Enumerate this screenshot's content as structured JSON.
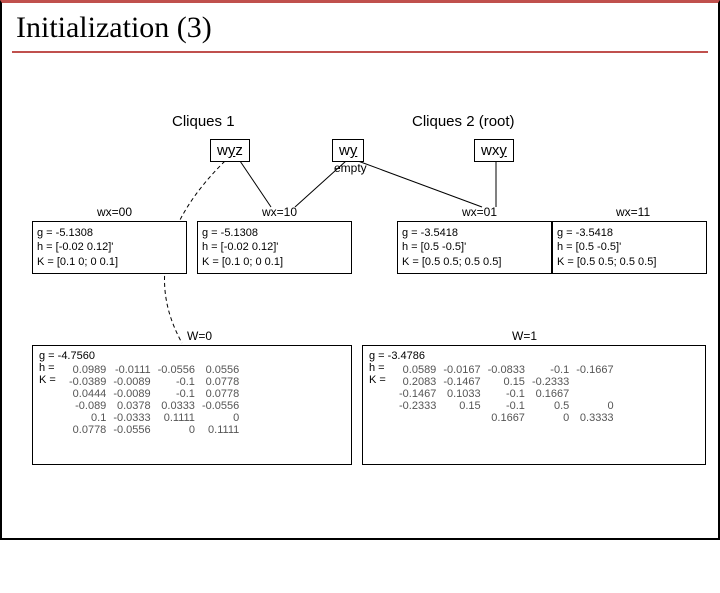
{
  "title": "Initialization (3)",
  "clique1_label": "Cliques 1",
  "clique2_label": "Cliques 2 (root)",
  "node_wyz_html": "w<u>y</u>z",
  "node_wy_html": "w<u>y</u>",
  "node_wxy_html": "wx<u>y</u>",
  "empty_label": "empty",
  "wx": {
    "c00": "wx=00",
    "c10": "wx=10",
    "c01": "wx=01",
    "c11": "wx=11"
  },
  "cells": {
    "c00": {
      "g": "g = -5.1308",
      "h": "h = [-0.02 0.12]'",
      "K": "K = [0.1 0; 0 0.1]"
    },
    "c10": {
      "g": "g = -5.1308",
      "h": "h = [-0.02 0.12]'",
      "K": "K = [0.1 0; 0 0.1]"
    },
    "c01": {
      "g": "g = -3.5418",
      "h": "h = [0.5 -0.5]'",
      "K": "K = [0.5 0.5; 0.5 0.5]"
    },
    "c11": {
      "g": "g = -3.5418",
      "h": "h = [0.5 -0.5]'",
      "K": "K = [0.5 0.5; 0.5 0.5]"
    }
  },
  "w0_label": "W=0",
  "w1_label": "W=1",
  "big_left": {
    "g": "g = -4.7560",
    "h_prefix": "h =",
    "K_prefix": "K =",
    "matrix": [
      [
        "0.0989",
        "-0.0111",
        "-0.0556",
        "0.0556"
      ],
      [
        "-0.0389",
        "-0.0089",
        "-0.1",
        "0.0778"
      ],
      [
        "0.0444",
        "-0.0089",
        "-0.1",
        "0.0778"
      ],
      [
        "-0.089",
        "0.0378",
        "0.0333",
        "-0.0556"
      ],
      [
        "0.1",
        "-0.0333",
        "0.1111",
        "0"
      ],
      [
        "0.0778",
        "-0.0556",
        "0",
        "0.1111"
      ]
    ]
  },
  "big_right": {
    "g": "g = -3.4786",
    "h_prefix": "h =",
    "K_prefix": "K =",
    "matrix": [
      [
        "0.0589",
        "-0.0167",
        "-0.0833",
        "-0.1",
        "-0.1667"
      ],
      [
        "0.2083",
        "-0.1467",
        "0.15",
        "-0.2333"
      ],
      [
        "-0.1467",
        "0.1033",
        "-0.1",
        "0.1667"
      ],
      [
        "-0.2333",
        "0.15",
        "-0.1",
        "0.5",
        "0"
      ],
      [
        "",
        "",
        "0.1667",
        "0",
        "0.3333"
      ]
    ]
  },
  "colors": {
    "accent": "#c0504d",
    "border": "#000000",
    "bg": "#ffffff"
  }
}
